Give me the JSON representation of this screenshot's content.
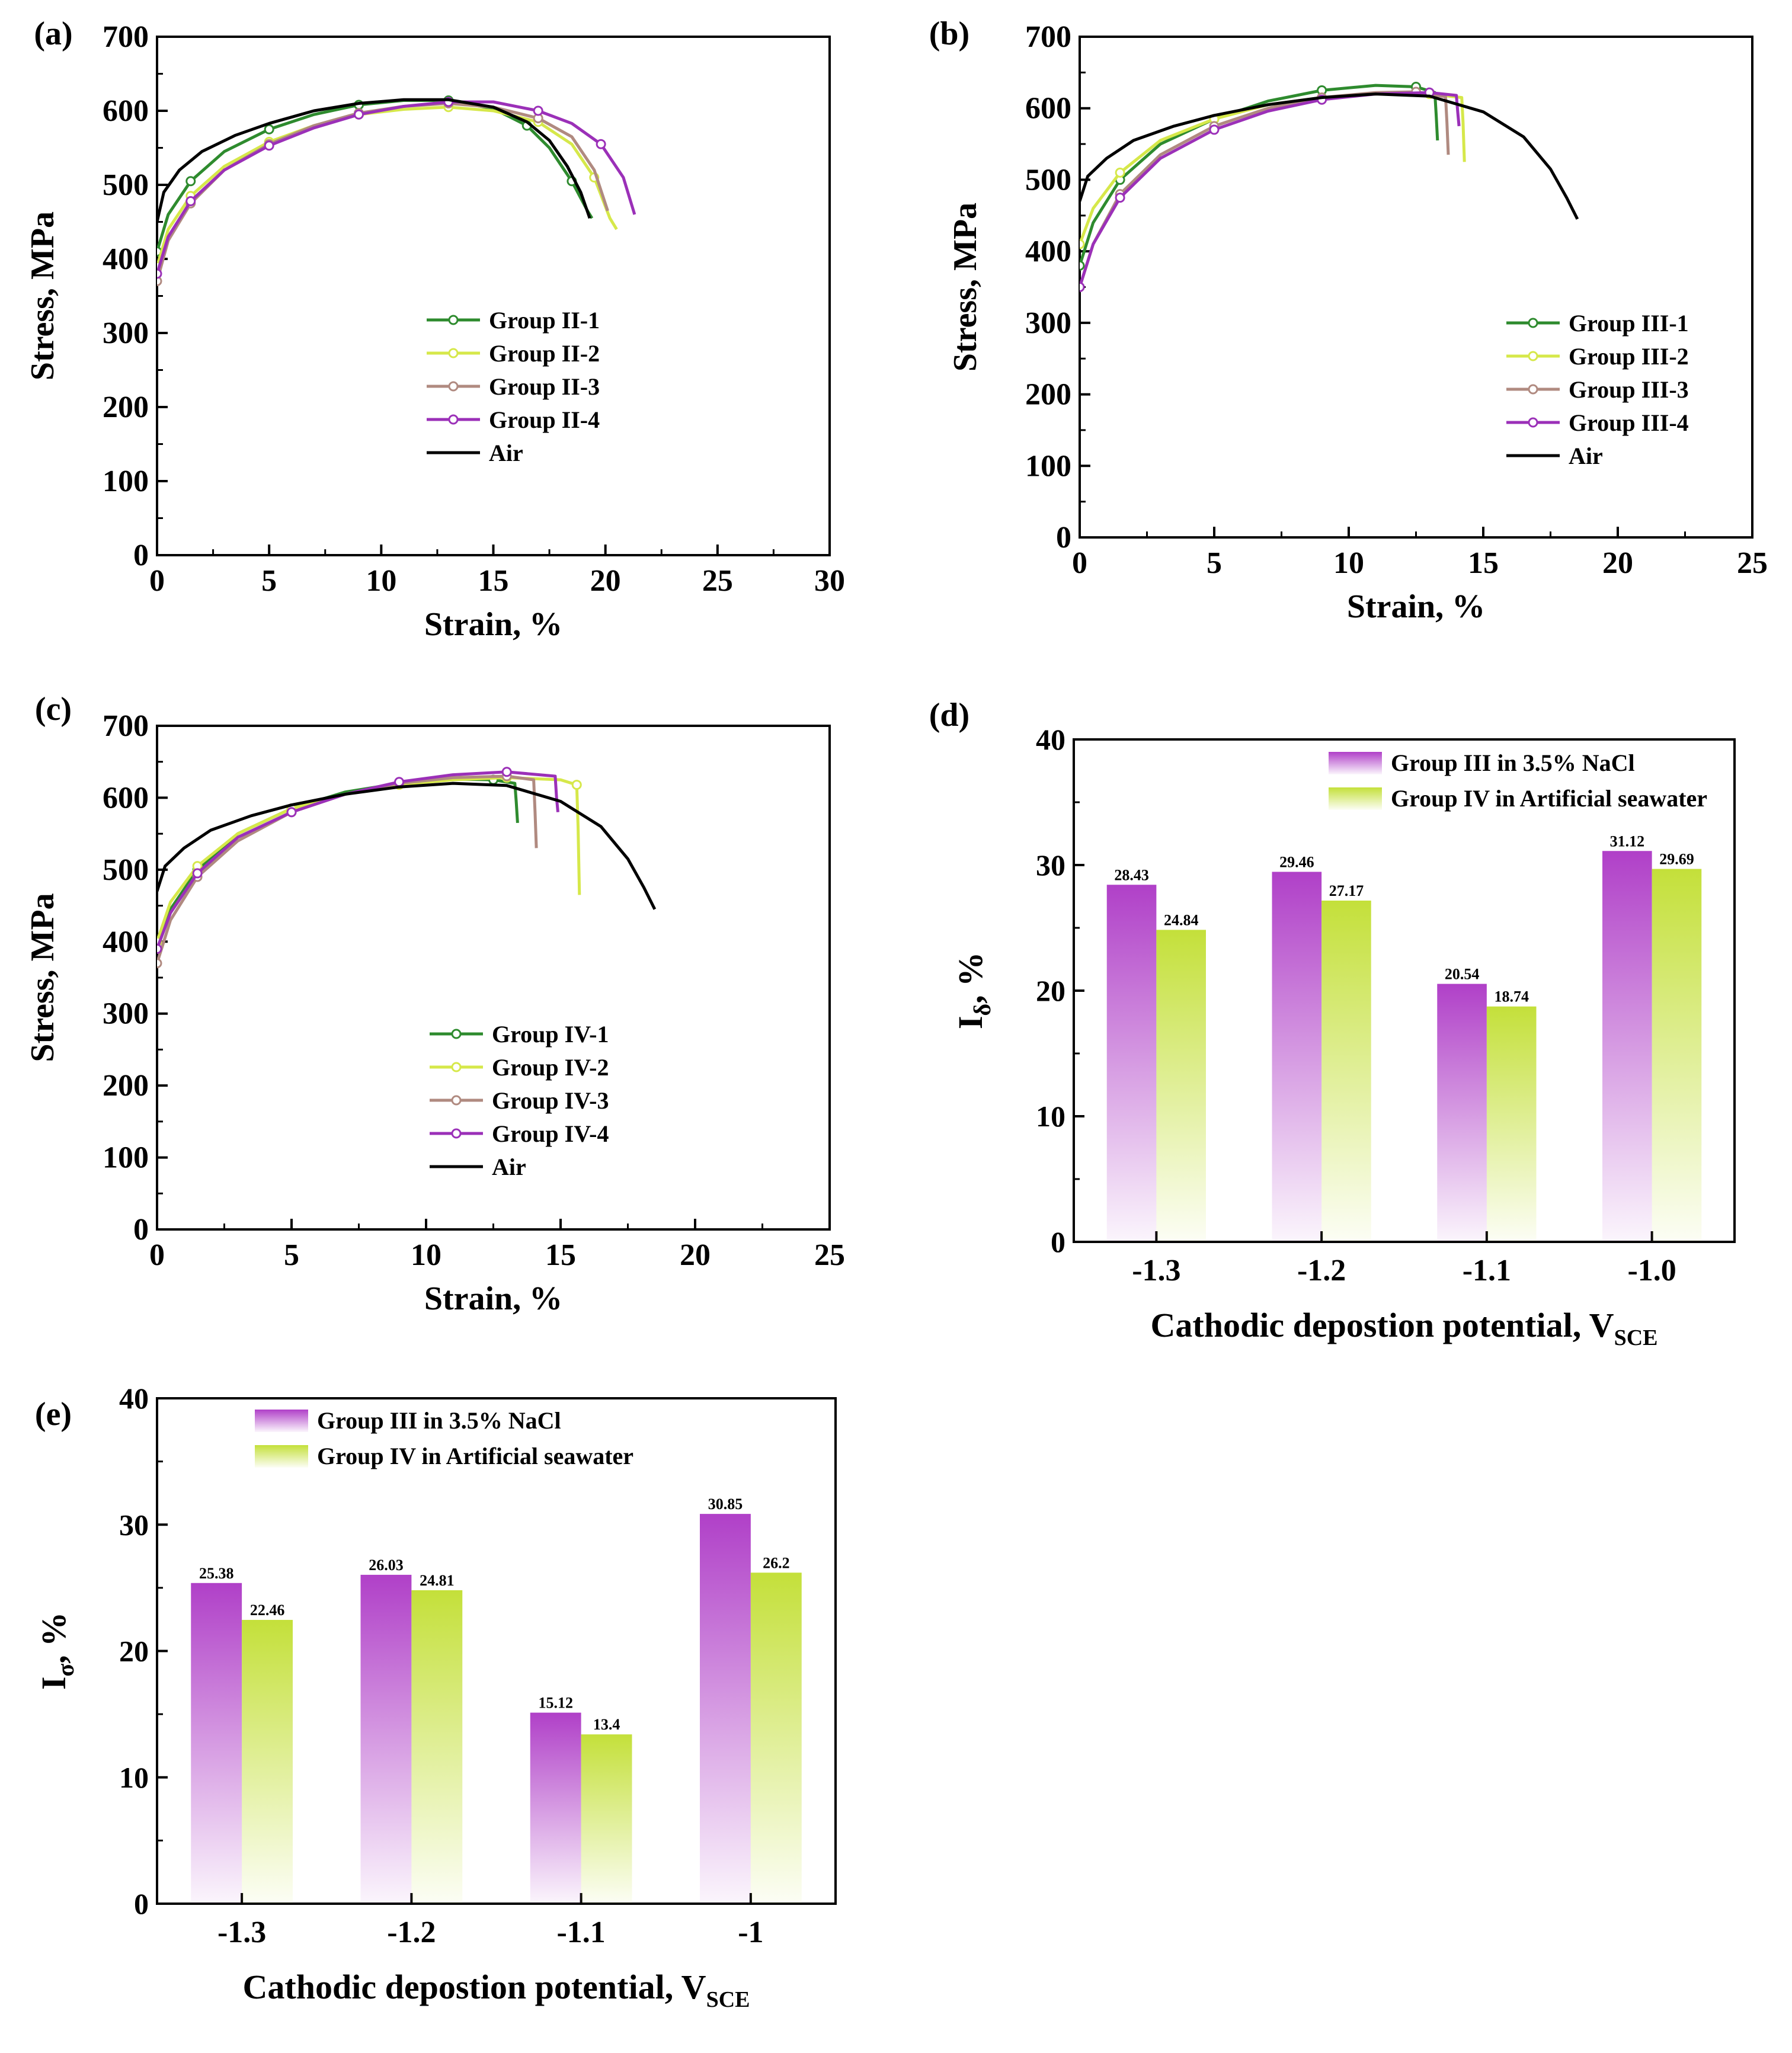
{
  "colors": {
    "dark_green": "#2E8B2E",
    "light_yellow": "#D6E84A",
    "tan": "#B08A80",
    "purple": "#9B30B8",
    "air": "#000000",
    "bar_purple": "#B040C8",
    "bar_green": "#C4E03A"
  },
  "chart_data": [
    {
      "id": "a",
      "type": "line",
      "panel_label": "(a)",
      "xlabel": "Strain, %",
      "ylabel": "Stress, MPa",
      "xlim": [
        0,
        30
      ],
      "ylim": [
        0,
        700
      ],
      "xticks": [
        "0",
        "5",
        "10",
        "15",
        "20",
        "25",
        "30"
      ],
      "yticks": [
        "0",
        "100",
        "200",
        "300",
        "400",
        "500",
        "600",
        "700"
      ],
      "legend_position": "bottom-right",
      "series": [
        {
          "name": "Group II-1",
          "color_key": "dark_green",
          "markers": true,
          "x": [
            0,
            0.5,
            1.5,
            3,
            5,
            7,
            9,
            11,
            13,
            15,
            16.5,
            17.5,
            18.5,
            19.2,
            19.4
          ],
          "y": [
            410,
            460,
            505,
            545,
            575,
            595,
            608,
            614,
            614,
            603,
            580,
            550,
            505,
            465,
            455
          ]
        },
        {
          "name": "Group II-2",
          "color_key": "light_yellow",
          "markers": true,
          "x": [
            0,
            0.5,
            1.5,
            3,
            5,
            7,
            9,
            11,
            13,
            15,
            17,
            18.5,
            19.5,
            20.2,
            20.5
          ],
          "y": [
            390,
            440,
            485,
            525,
            558,
            580,
            595,
            602,
            605,
            600,
            585,
            555,
            510,
            455,
            440
          ]
        },
        {
          "name": "Group II-3",
          "color_key": "tan",
          "markers": true,
          "x": [
            0,
            0.5,
            1.5,
            3,
            5,
            7,
            9,
            11,
            13,
            15,
            17,
            18.5,
            19.5,
            20.1
          ],
          "y": [
            370,
            425,
            475,
            520,
            555,
            580,
            597,
            606,
            610,
            605,
            590,
            565,
            520,
            465
          ]
        },
        {
          "name": "Group II-4",
          "color_key": "purple",
          "markers": true,
          "x": [
            0,
            0.5,
            1.5,
            3,
            5,
            7,
            9,
            11,
            13,
            15,
            17,
            18.5,
            19.8,
            20.8,
            21.3
          ],
          "y": [
            380,
            430,
            478,
            520,
            553,
            577,
            595,
            606,
            612,
            612,
            600,
            583,
            555,
            510,
            460
          ]
        },
        {
          "name": "Air",
          "color_key": "air",
          "markers": false,
          "x": [
            0,
            0.3,
            1,
            2,
            3.5,
            5,
            7,
            9,
            11,
            13,
            15,
            16.5,
            17.5,
            18.3,
            18.9,
            19.3
          ],
          "y": [
            450,
            490,
            520,
            545,
            567,
            583,
            600,
            610,
            615,
            615,
            605,
            585,
            560,
            525,
            490,
            455
          ]
        }
      ]
    },
    {
      "id": "b",
      "type": "line",
      "panel_label": "(b)",
      "xlabel": "Strain, %",
      "ylabel": "Stress, MPa",
      "xlim": [
        0,
        25
      ],
      "ylim": [
        0,
        700
      ],
      "xticks": [
        "0",
        "5",
        "10",
        "15",
        "20",
        "25"
      ],
      "yticks": [
        "0",
        "100",
        "200",
        "300",
        "400",
        "500",
        "600",
        "700"
      ],
      "legend_position": "bottom-right",
      "series": [
        {
          "name": "Group III-1",
          "color_key": "dark_green",
          "markers": true,
          "x": [
            0,
            0.5,
            1.5,
            3,
            5,
            7,
            9,
            11,
            12.5,
            13.2,
            13.25,
            13.3
          ],
          "y": [
            380,
            440,
            500,
            550,
            585,
            610,
            625,
            632,
            630,
            622,
            590,
            555
          ]
        },
        {
          "name": "Group III-2",
          "color_key": "light_yellow",
          "markers": true,
          "x": [
            0,
            0.5,
            1.5,
            3,
            5,
            7,
            9,
            11,
            13,
            14.2,
            14.25,
            14.3
          ],
          "y": [
            410,
            460,
            510,
            555,
            585,
            605,
            615,
            620,
            620,
            615,
            580,
            525
          ]
        },
        {
          "name": "Group III-3",
          "color_key": "tan",
          "markers": true,
          "x": [
            0,
            0.5,
            1.5,
            3,
            5,
            7,
            9,
            11,
            12.5,
            13.6,
            13.65,
            13.7
          ],
          "y": [
            350,
            410,
            480,
            535,
            575,
            600,
            615,
            622,
            623,
            616,
            580,
            535
          ]
        },
        {
          "name": "Group III-4",
          "color_key": "purple",
          "markers": true,
          "x": [
            0,
            0.5,
            1.5,
            3,
            5,
            7,
            9,
            11,
            13,
            14,
            14.05,
            14.1
          ],
          "y": [
            350,
            410,
            475,
            530,
            570,
            596,
            612,
            620,
            622,
            618,
            595,
            575
          ]
        },
        {
          "name": "Air",
          "color_key": "air",
          "markers": false,
          "x": [
            0,
            0.3,
            1,
            2,
            3.5,
            5,
            7,
            9,
            11,
            13,
            15,
            16.5,
            17.5,
            18.1,
            18.5
          ],
          "y": [
            470,
            505,
            530,
            555,
            575,
            590,
            605,
            615,
            620,
            617,
            595,
            560,
            515,
            475,
            445
          ]
        }
      ]
    },
    {
      "id": "c",
      "type": "line",
      "panel_label": "(c)",
      "xlabel": "Strain, %",
      "ylabel": "Stress, MPa",
      "xlim": [
        0,
        25
      ],
      "ylim": [
        0,
        700
      ],
      "xticks": [
        "0",
        "5",
        "10",
        "15",
        "20",
        "25"
      ],
      "yticks": [
        "0",
        "100",
        "200",
        "300",
        "400",
        "500",
        "600",
        "700"
      ],
      "legend_position": "bottom-right",
      "series": [
        {
          "name": "Group IV-1",
          "color_key": "dark_green",
          "markers": true,
          "x": [
            0,
            0.5,
            1.5,
            3,
            5,
            7,
            9,
            11,
            12.5,
            13.3,
            13.35,
            13.4
          ],
          "y": [
            400,
            445,
            500,
            550,
            585,
            608,
            620,
            626,
            625,
            620,
            595,
            565
          ]
        },
        {
          "name": "Group IV-2",
          "color_key": "light_yellow",
          "markers": true,
          "x": [
            0,
            0.5,
            1.5,
            3,
            5,
            7,
            9,
            11,
            13,
            15,
            15.6,
            15.65,
            15.7
          ],
          "y": [
            400,
            455,
            505,
            550,
            585,
            605,
            618,
            625,
            628,
            625,
            618,
            560,
            465
          ]
        },
        {
          "name": "Group IV-3",
          "color_key": "tan",
          "markers": true,
          "x": [
            0,
            0.5,
            1.5,
            3,
            5,
            7,
            9,
            11,
            13,
            14,
            14.05,
            14.1
          ],
          "y": [
            370,
            430,
            490,
            540,
            580,
            605,
            620,
            628,
            630,
            625,
            580,
            530
          ]
        },
        {
          "name": "Group IV-4",
          "color_key": "purple",
          "markers": true,
          "x": [
            0,
            0.5,
            1.5,
            3,
            5,
            7,
            9,
            11,
            13,
            14.8,
            14.85,
            14.9
          ],
          "y": [
            390,
            440,
            495,
            545,
            580,
            605,
            622,
            632,
            636,
            630,
            600,
            580
          ]
        },
        {
          "name": "Air",
          "color_key": "air",
          "markers": false,
          "x": [
            0,
            0.3,
            1,
            2,
            3.5,
            5,
            7,
            9,
            11,
            13,
            15,
            16.5,
            17.5,
            18.1,
            18.5
          ],
          "y": [
            470,
            505,
            530,
            555,
            575,
            590,
            605,
            615,
            620,
            617,
            595,
            560,
            515,
            475,
            445
          ]
        }
      ]
    },
    {
      "id": "d",
      "type": "bar",
      "panel_label": "(d)",
      "xlabel_main": "Cathodic depostion potential, V",
      "xlabel_sub": "SCE",
      "ylabel_main": "I",
      "ylabel_sub": "δ",
      "ylabel_tail": ", %",
      "ylim": [
        0,
        40
      ],
      "yticks": [
        "0",
        "10",
        "20",
        "30",
        "40"
      ],
      "categories": [
        "-1.3",
        "-1.2",
        "-1.1",
        "-1.0"
      ],
      "legend_position": "top-right",
      "series": [
        {
          "name": "Group III in 3.5% NaCl",
          "color_key": "bar_purple",
          "values": [
            28.43,
            29.46,
            20.54,
            31.12
          ],
          "labels": [
            "28.43",
            "29.46",
            "20.54",
            "31.12"
          ]
        },
        {
          "name": "Group IV in Artificial seawater",
          "color_key": "bar_green",
          "values": [
            24.84,
            27.17,
            18.74,
            29.69
          ],
          "labels": [
            "24.84",
            "27.17",
            "18.74",
            "29.69"
          ]
        }
      ]
    },
    {
      "id": "e",
      "type": "bar",
      "panel_label": "(e)",
      "xlabel_main": "Cathodic depostion potential, V",
      "xlabel_sub": "SCE",
      "ylabel_main": "I",
      "ylabel_sub": "σ",
      "ylabel_tail": ", %",
      "ylim": [
        0,
        40
      ],
      "yticks": [
        "0",
        "10",
        "20",
        "30",
        "40"
      ],
      "categories": [
        "-1.3",
        "-1.2",
        "-1.1",
        "-1"
      ],
      "legend_position": "top-right",
      "series": [
        {
          "name": "Group III in 3.5% NaCl",
          "color_key": "bar_purple",
          "values": [
            25.38,
            26.03,
            15.12,
            30.85
          ],
          "labels": [
            "25.38",
            "26.03",
            "15.12",
            "30.85"
          ]
        },
        {
          "name": "Group IV in Artificial seawater",
          "color_key": "bar_green",
          "values": [
            22.46,
            24.81,
            13.4,
            26.2
          ],
          "labels": [
            "22.46",
            "24.81",
            "13.4",
            "26.2"
          ]
        }
      ]
    }
  ]
}
